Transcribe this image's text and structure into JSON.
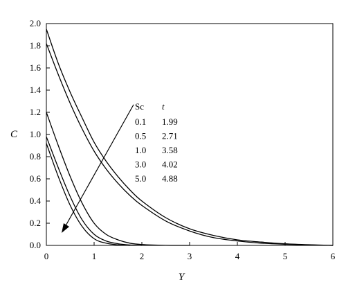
{
  "chart_data": {
    "type": "line",
    "xlabel": "Y",
    "ylabel": "C",
    "xlim": [
      0,
      6
    ],
    "ylim": [
      0,
      2.0
    ],
    "xticks": [
      "0",
      "1",
      "2",
      "3",
      "4",
      "5",
      "6"
    ],
    "yticks": [
      "0.0",
      "0.2",
      "0.4",
      "0.6",
      "0.8",
      "1.0",
      "1.2",
      "1.4",
      "1.6",
      "1.8",
      "2.0"
    ],
    "grid": false,
    "legend": {
      "header": [
        "Sc",
        "t"
      ],
      "rows": [
        [
          "0.1",
          "1.99"
        ],
        [
          "0.5",
          "2.71"
        ],
        [
          "1.0",
          "3.58"
        ],
        [
          "3.0",
          "4.02"
        ],
        [
          "5.0",
          "4.88"
        ]
      ],
      "arrow": "points toward decreasing curves"
    },
    "series": [
      {
        "x": [
          0,
          0.25,
          0.5,
          0.75,
          1.0,
          1.25,
          1.5,
          1.75,
          2.0,
          2.5,
          3.0,
          3.5,
          4.0,
          4.5,
          5.0,
          5.5,
          6.0
        ],
        "values": [
          1.95,
          1.64,
          1.38,
          1.15,
          0.93,
          0.76,
          0.62,
          0.5,
          0.4,
          0.25,
          0.15,
          0.09,
          0.05,
          0.03,
          0.015,
          0.006,
          0.0
        ]
      },
      {
        "x": [
          0,
          0.25,
          0.5,
          0.75,
          1.0,
          1.25,
          1.5,
          1.75,
          2.0,
          2.5,
          3.0,
          3.5,
          4.0,
          4.5,
          5.0,
          5.5,
          6.0
        ],
        "values": [
          1.82,
          1.54,
          1.28,
          1.05,
          0.85,
          0.69,
          0.56,
          0.45,
          0.36,
          0.22,
          0.13,
          0.07,
          0.04,
          0.02,
          0.01,
          0.004,
          0.0
        ]
      },
      {
        "x": [
          0,
          0.25,
          0.5,
          0.75,
          1.0,
          1.25,
          1.5,
          1.75,
          2.0,
          2.5,
          3.0
        ],
        "values": [
          1.2,
          0.9,
          0.62,
          0.38,
          0.2,
          0.1,
          0.05,
          0.02,
          0.008,
          0.001,
          0.0
        ]
      },
      {
        "x": [
          0,
          0.25,
          0.5,
          0.75,
          1.0,
          1.25,
          1.5,
          1.75,
          2.0
        ],
        "values": [
          0.98,
          0.7,
          0.44,
          0.23,
          0.1,
          0.04,
          0.015,
          0.004,
          0.0
        ]
      },
      {
        "x": [
          0,
          0.25,
          0.5,
          0.75,
          1.0,
          1.25,
          1.5,
          1.75
        ],
        "values": [
          0.92,
          0.62,
          0.36,
          0.17,
          0.06,
          0.02,
          0.005,
          0.0
        ]
      }
    ]
  }
}
